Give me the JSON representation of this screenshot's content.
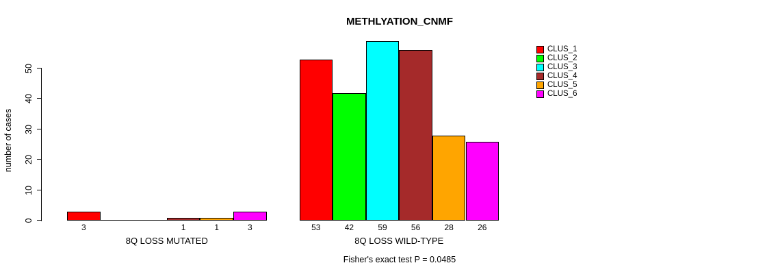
{
  "title": "METHLYATION_CNMF",
  "footer": {
    "text": "Fisher's exact test P = 0.0485"
  },
  "y_axis": {
    "label": "number of cases",
    "ticks": [
      0,
      10,
      20,
      30,
      40,
      50
    ]
  },
  "legend": {
    "position": "right",
    "items": [
      {
        "label": "CLUS_1",
        "color": "#FF0000"
      },
      {
        "label": "CLUS_2",
        "color": "#00FF00"
      },
      {
        "label": "CLUS_3",
        "color": "#00FFFF"
      },
      {
        "label": "CLUS_4",
        "color": "#A52A2A"
      },
      {
        "label": "CLUS_5",
        "color": "#FFA500"
      },
      {
        "label": "CLUS_6",
        "color": "#FF00FF"
      }
    ]
  },
  "chart_data": {
    "type": "bar",
    "title": "METHLYATION_CNMF",
    "ylabel": "number of cases",
    "xlabel": "",
    "categories": [
      "8Q LOSS MUTATED",
      "8Q LOSS WILD-TYPE"
    ],
    "series": [
      {
        "name": "CLUS_1",
        "color": "#FF0000",
        "values": [
          3,
          53
        ]
      },
      {
        "name": "CLUS_2",
        "color": "#00FF00",
        "values": [
          0,
          42
        ]
      },
      {
        "name": "CLUS_3",
        "color": "#00FFFF",
        "values": [
          0,
          59
        ]
      },
      {
        "name": "CLUS_4",
        "color": "#A52A2A",
        "values": [
          1,
          56
        ]
      },
      {
        "name": "CLUS_5",
        "color": "#FFA500",
        "values": [
          1,
          28
        ]
      },
      {
        "name": "CLUS_6",
        "color": "#FF00FF",
        "values": [
          3,
          26
        ]
      }
    ],
    "yticks": [
      0,
      10,
      20,
      30,
      40,
      50
    ],
    "ylim": [
      0,
      59
    ],
    "grid": false,
    "legend_position": "right",
    "bar_labels": {
      "shown": true,
      "hide_zero": true
    },
    "annotation": "Fisher's exact test P = 0.0485"
  }
}
